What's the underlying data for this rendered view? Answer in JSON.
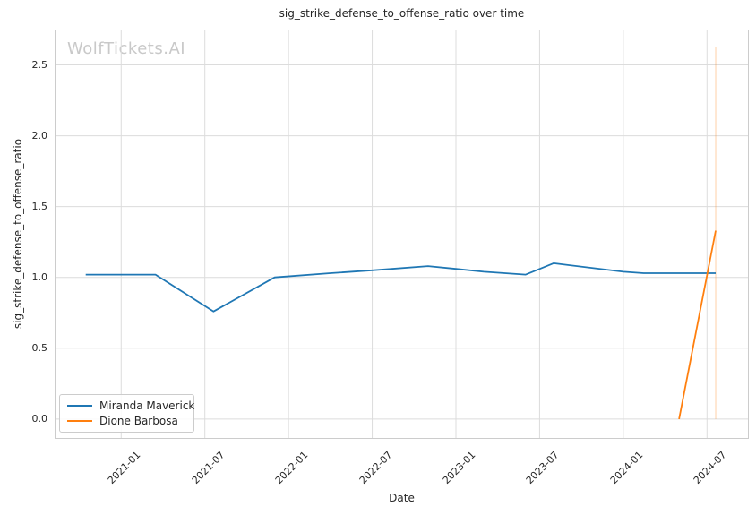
{
  "watermark": "WolfTickets.AI",
  "chart_data": {
    "type": "line",
    "title": "sig_strike_defense_to_offense_ratio over time",
    "xlabel": "Date",
    "ylabel": "sig_strike_defense_to_offense_ratio",
    "x_tick_labels": [
      "2021-01",
      "2021-07",
      "2022-01",
      "2022-07",
      "2023-01",
      "2023-07",
      "2024-01",
      "2024-07"
    ],
    "y_tick_labels": [
      "0.0",
      "0.5",
      "1.0",
      "1.5",
      "2.0",
      "2.5"
    ],
    "xlim": [
      "2020-08-08",
      "2024-10-01"
    ],
    "ylim": [
      -0.14,
      2.75
    ],
    "grid": true,
    "legend": {
      "position": "lower left",
      "entries": [
        "Miranda Maverick",
        "Dione Barbosa"
      ]
    },
    "series": [
      {
        "name": "Miranda Maverick",
        "color": "#1f77b4",
        "points": [
          [
            "2020-10-15",
            1.02
          ],
          [
            "2021-03-15",
            1.02
          ],
          [
            "2021-07-20",
            0.76
          ],
          [
            "2021-12-01",
            1.0
          ],
          [
            "2022-04-01",
            1.03
          ],
          [
            "2022-07-01",
            1.05
          ],
          [
            "2022-11-01",
            1.08
          ],
          [
            "2023-01-01",
            1.06
          ],
          [
            "2023-03-01",
            1.04
          ],
          [
            "2023-06-01",
            1.02
          ],
          [
            "2023-08-01",
            1.1
          ],
          [
            "2024-01-01",
            1.04
          ],
          [
            "2024-02-15",
            1.03
          ],
          [
            "2024-07-20",
            1.03
          ]
        ]
      },
      {
        "name": "Dione Barbosa",
        "color": "#ff7f0e",
        "points": [
          [
            "2024-05-01",
            0.0
          ],
          [
            "2024-07-20",
            1.33
          ]
        ],
        "error_bar": {
          "x": "2024-07-20",
          "low": 0.0,
          "high": 2.63
        }
      }
    ]
  },
  "colors": {
    "grid": "#dcdcdc",
    "spine": "#cccccc",
    "text": "#262626",
    "watermark": "#c9c9c9",
    "error_bar": "rgba(255,127,14,0.3)"
  }
}
